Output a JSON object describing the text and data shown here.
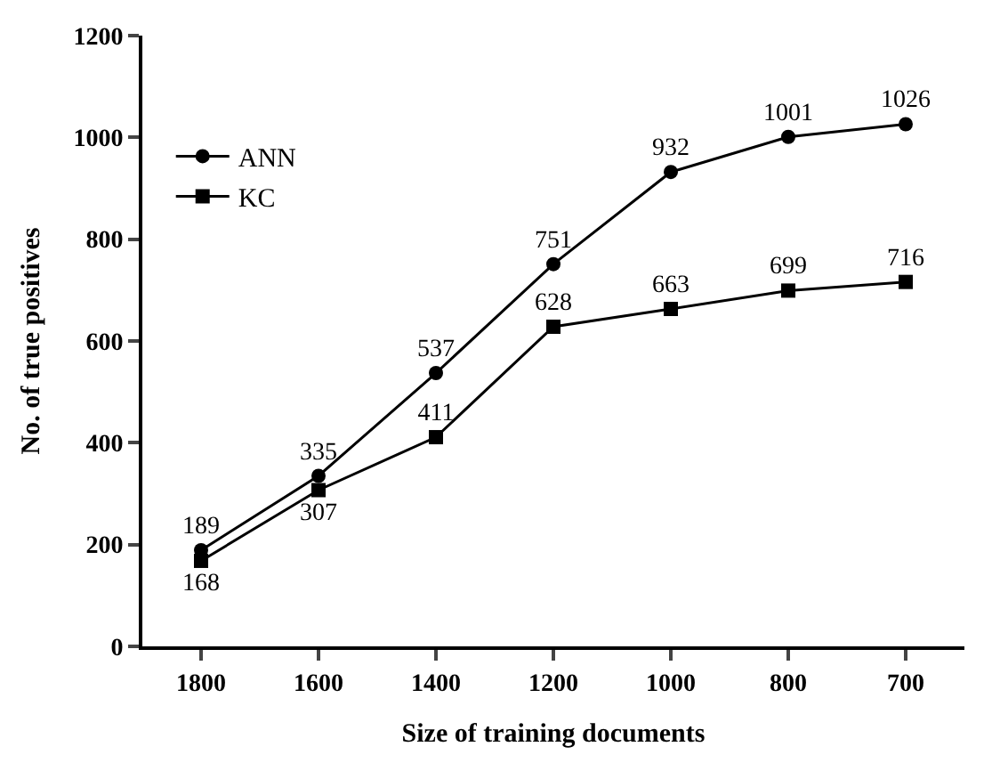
{
  "chart_data": {
    "type": "line",
    "xlabel": "Size of training documents",
    "ylabel": "No. of true positives",
    "categories": [
      "1800",
      "1600",
      "1400",
      "1200",
      "1000",
      "800",
      "700"
    ],
    "series": [
      {
        "name": "ANN",
        "color": "#000000",
        "marker": "circle",
        "values": [
          189,
          335,
          537,
          751,
          932,
          1001,
          1026
        ]
      },
      {
        "name": "KC",
        "color": "#000000",
        "marker": "square",
        "values": [
          168,
          307,
          411,
          628,
          663,
          699,
          716
        ]
      }
    ],
    "ylim": [
      0,
      1200
    ],
    "yticks": [
      0,
      200,
      400,
      600,
      800,
      1000,
      1200
    ],
    "data_labels": true,
    "grid": false,
    "legend": "top left",
    "line_style": "solid"
  }
}
